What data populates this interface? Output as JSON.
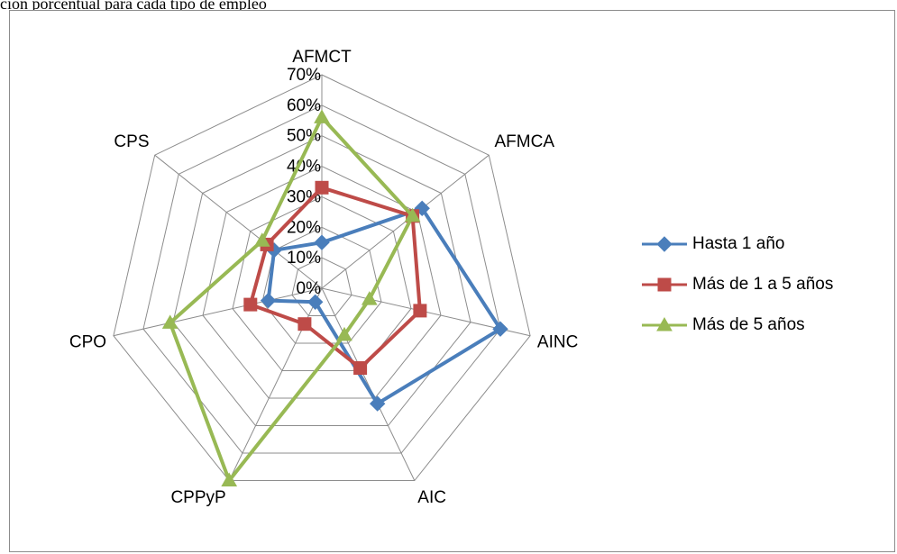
{
  "caption": "ción porcentual para cada tipo de empleo",
  "chart_data": {
    "type": "radar",
    "categories": [
      "AFMCT",
      "AFMCA",
      "AINC",
      "AIC",
      "CPPyP",
      "CPO",
      "CPS"
    ],
    "ticks": [
      "0%",
      "10%",
      "20%",
      "30%",
      "40%",
      "50%",
      "60%",
      "70%"
    ],
    "rlim": [
      0,
      70
    ],
    "grid": true,
    "legend_position": "right",
    "series": [
      {
        "name": "Hasta 1 año",
        "color": "#4a7ebb",
        "marker": "diamond",
        "values": [
          15,
          42,
          60,
          42,
          5,
          18,
          20
        ]
      },
      {
        "name": "Más de 1 a 5 años",
        "color": "#be4b48",
        "marker": "square",
        "values": [
          33,
          38,
          33,
          29,
          13,
          24,
          23
        ]
      },
      {
        "name": "Más de 5 años",
        "color": "#98b954",
        "marker": "triangle",
        "values": [
          56,
          38,
          16,
          17,
          70,
          51,
          25
        ]
      }
    ]
  }
}
